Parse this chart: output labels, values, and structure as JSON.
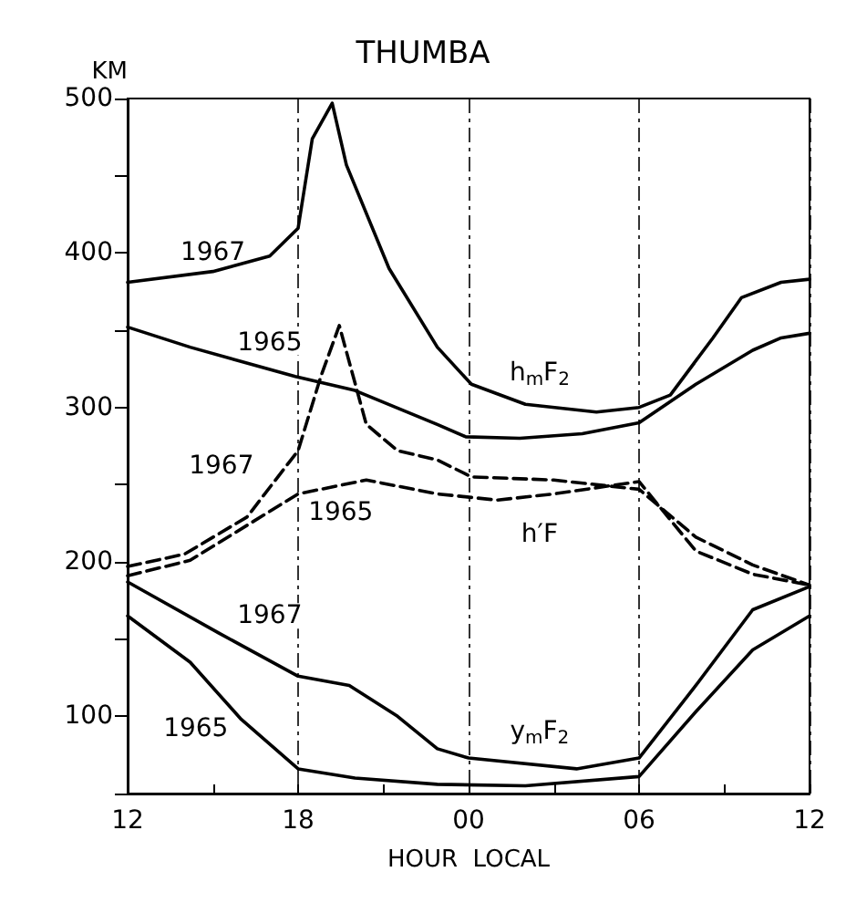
{
  "chart_data": {
    "type": "line",
    "title": "THUMBA",
    "xlabel": "HOUR  LOCAL",
    "ylabel": "KM",
    "marker": "none",
    "grid": "x",
    "xlim": [
      12,
      36
    ],
    "xticks": [
      {
        "value": 12,
        "label": "12"
      },
      {
        "value": 15,
        "label": null
      },
      {
        "value": 18,
        "label": "18"
      },
      {
        "value": 21,
        "label": null
      },
      {
        "value": 24,
        "label": "00"
      },
      {
        "value": 27,
        "label": null
      },
      {
        "value": 30,
        "label": "06"
      },
      {
        "value": 33,
        "label": null
      },
      {
        "value": 36,
        "label": "12"
      }
    ],
    "ylim": [
      50,
      500
    ],
    "yticks": [
      {
        "value": 50,
        "label": null
      },
      100,
      {
        "value": 150,
        "label": null
      },
      200,
      {
        "value": 250,
        "label": null
      },
      300,
      {
        "value": 350,
        "label": null
      },
      400,
      {
        "value": 450,
        "label": null
      },
      500
    ],
    "series": [
      {
        "color": "#000000",
        "line_style": "solid",
        "x": [
          12,
          15,
          17,
          18,
          18.5,
          19.2,
          19.7,
          21.2,
          22.9,
          24.1,
          26,
          28.5,
          30,
          31.1,
          32.6,
          33.6,
          35,
          36
        ],
        "values": [
          381,
          388,
          398,
          416,
          474,
          497,
          457,
          390,
          339,
          315,
          302,
          297,
          300,
          308,
          345,
          371,
          381,
          383
        ]
      },
      {
        "color": "#000000",
        "line_style": "solid",
        "x": [
          12,
          14.2,
          17.9,
          20,
          22.9,
          23.9,
          25.8,
          28,
          30,
          32,
          34,
          35,
          36
        ],
        "values": [
          352,
          339,
          320,
          311,
          289,
          281,
          280,
          283,
          290,
          315,
          337,
          345,
          348
        ]
      },
      {
        "color": "#000000",
        "line_style": "dashed",
        "x": [
          12,
          14,
          16.2,
          18,
          18.8,
          19.45,
          20.4,
          21.5,
          22.9,
          24.1,
          27,
          30,
          32,
          34,
          36
        ],
        "values": [
          197,
          205,
          229,
          272,
          320,
          353,
          289,
          272,
          266,
          255,
          253,
          247,
          216,
          198,
          185
        ]
      },
      {
        "color": "#000000",
        "line_style": "dashed",
        "x": [
          12,
          14.2,
          18,
          20.4,
          22.9,
          25,
          27,
          30,
          32,
          34,
          36
        ],
        "values": [
          191,
          201,
          244,
          253,
          244,
          240,
          244,
          252,
          207,
          192,
          185
        ]
      },
      {
        "color": "#000000",
        "line_style": "solid",
        "x": [
          12,
          15.2,
          18,
          19.8,
          21.5,
          22.9,
          24,
          27.8,
          30,
          32,
          34,
          36
        ],
        "values": [
          187,
          154,
          126,
          120,
          100,
          79,
          73,
          66,
          73,
          120,
          169,
          184
        ]
      },
      {
        "color": "#000000",
        "line_style": "solid",
        "x": [
          12,
          14.2,
          16,
          18,
          20,
          22.9,
          26,
          30,
          32,
          34,
          36
        ],
        "values": [
          165,
          135,
          98,
          66,
          60,
          56,
          55,
          61,
          103,
          143,
          165
        ]
      }
    ],
    "annotations": [
      {
        "text": "1967",
        "x": 15,
        "y": 400
      },
      {
        "text": "1965",
        "x": 17,
        "y": 342
      },
      {
        "text": "1967",
        "x": 15.3,
        "y": 262
      },
      {
        "text": "1965",
        "x": 19.5,
        "y": 232
      },
      {
        "text": "1967",
        "x": 17,
        "y": 165
      },
      {
        "text": "1965",
        "x": 14.4,
        "y": 92
      },
      {
        "text": "h$_{m}$F$_{2}$",
        "x": 26.5,
        "y": 322
      },
      {
        "text": "h′F",
        "x": 26.5,
        "y": 218
      },
      {
        "text": "y$_{m}$F$_{2}$",
        "x": 26.5,
        "y": 90
      }
    ]
  }
}
